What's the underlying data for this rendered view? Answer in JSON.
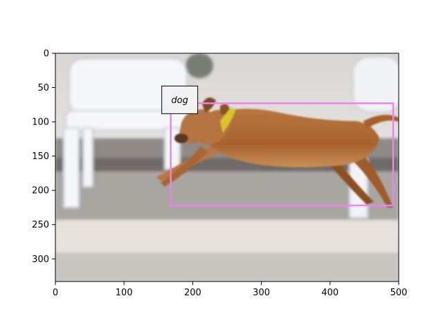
{
  "figure": {
    "image_extent": {
      "x": [
        0,
        500
      ],
      "y": [
        0,
        333
      ]
    },
    "x_ticks": [
      0,
      100,
      200,
      300,
      400,
      500
    ],
    "y_ticks": [
      0,
      50,
      100,
      150,
      200,
      250,
      300
    ],
    "colors": {
      "box": "#ee82ee",
      "label_bg": "#f2f2f2",
      "axis": "#000000"
    }
  },
  "detections": [
    {
      "label": "dog",
      "bbox_data": {
        "x1": 168,
        "y1": 73,
        "x2": 492,
        "y2": 222
      }
    }
  ]
}
